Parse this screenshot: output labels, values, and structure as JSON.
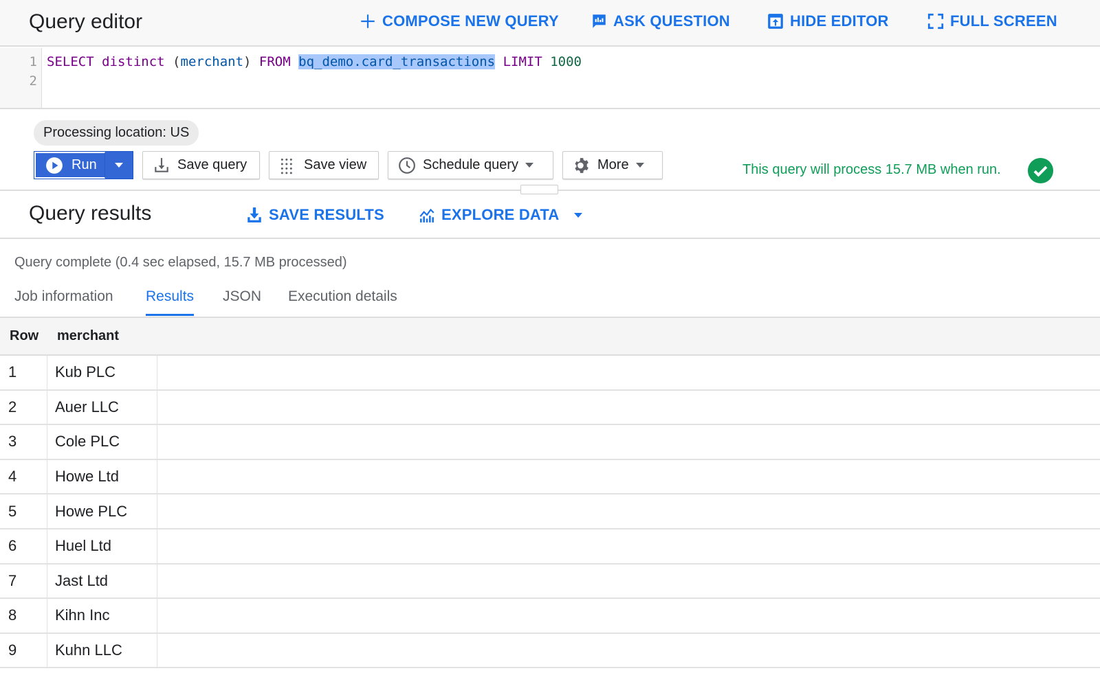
{
  "header": {
    "title": "Query editor",
    "compose": "COMPOSE NEW QUERY",
    "ask": "ASK QUESTION",
    "hide": "HIDE EDITOR",
    "full": "FULL SCREEN"
  },
  "editor": {
    "line_numbers": [
      "1",
      "2"
    ],
    "tokens": {
      "select": "SELECT",
      "distinct": "distinct",
      "open": " (",
      "field": "merchant",
      "close": ") ",
      "from": "FROM",
      "table": "bq_demo.card_transactions",
      "limit": "LIMIT",
      "num": "1000"
    }
  },
  "toolbar": {
    "location": "Processing location: US",
    "run": "Run",
    "save_query": "Save query",
    "save_view": "Save view",
    "schedule": "Schedule query",
    "more": "More",
    "estimate": "This query will process 15.7 MB when run."
  },
  "results": {
    "title": "Query results",
    "save": "SAVE RESULTS",
    "explore": "EXPLORE DATA",
    "status": "Query complete (0.4 sec elapsed, 15.7 MB processed)",
    "tabs": [
      "Job information",
      "Results",
      "JSON",
      "Execution details"
    ],
    "active_tab": "Results",
    "columns": [
      "Row",
      "merchant"
    ],
    "rows": [
      [
        "1",
        "Kub PLC"
      ],
      [
        "2",
        "Auer LLC"
      ],
      [
        "3",
        "Cole PLC"
      ],
      [
        "4",
        "Howe Ltd"
      ],
      [
        "5",
        "Howe PLC"
      ],
      [
        "6",
        "Huel Ltd"
      ],
      [
        "7",
        "Jast Ltd"
      ],
      [
        "8",
        "Kihn Inc"
      ],
      [
        "9",
        "Kuhn LLC"
      ]
    ]
  },
  "colors": {
    "accent": "#1a73e8",
    "run": "#3367d6",
    "success": "#0f9d58"
  }
}
